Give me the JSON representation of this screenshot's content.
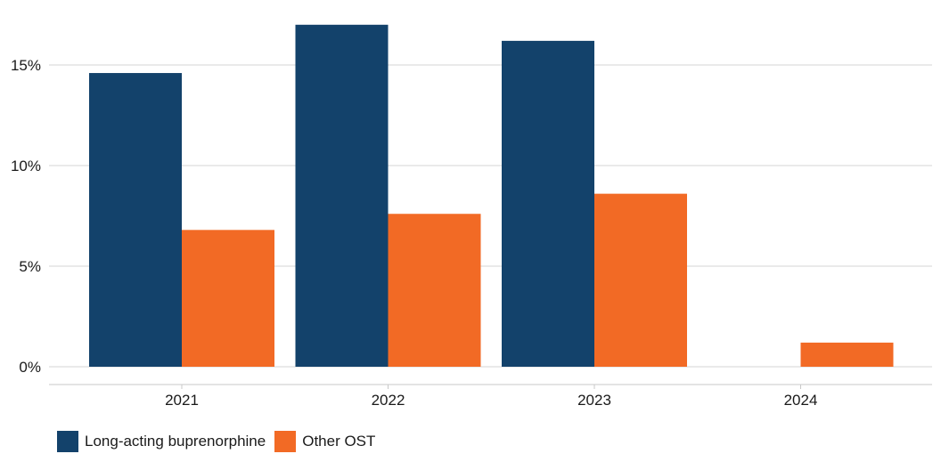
{
  "chart_data": {
    "type": "bar",
    "title": "",
    "xlabel": "",
    "ylabel": "",
    "categories": [
      "2021",
      "2022",
      "2023",
      "2024"
    ],
    "series": [
      {
        "name": "Long-acting buprenorphine",
        "color": "#13426b",
        "values": [
          14.6,
          17.0,
          16.2,
          0
        ]
      },
      {
        "name": "Other OST",
        "color": "#f26a25",
        "values": [
          6.8,
          7.6,
          8.6,
          1.2
        ]
      }
    ],
    "ylim": [
      0,
      18
    ],
    "yticks": [
      0,
      5,
      10,
      15
    ],
    "ytick_labels": [
      "0%",
      "5%",
      "10%",
      "15%"
    ],
    "grid": true,
    "legend_position": "bottom-left"
  }
}
